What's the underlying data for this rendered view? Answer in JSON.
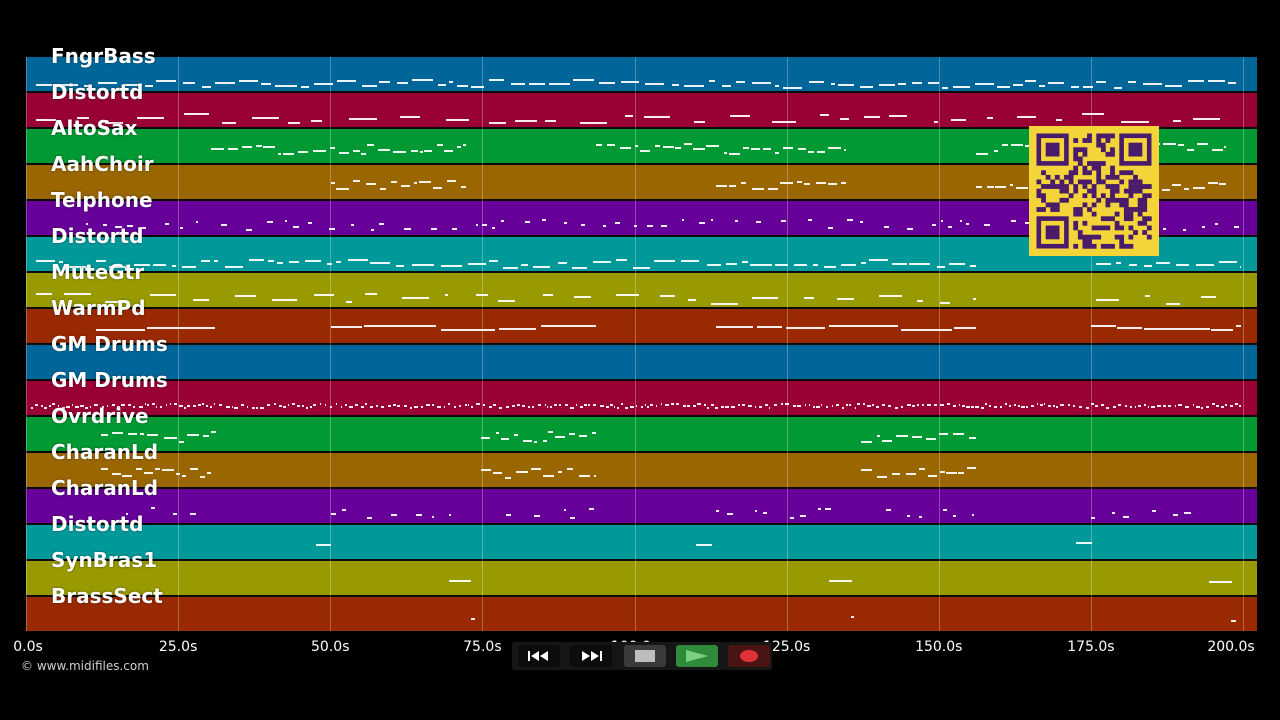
{
  "tracks": [
    {
      "name": "FngrBass",
      "color": "#006699"
    },
    {
      "name": "Distortd",
      "color": "#990033"
    },
    {
      "name": "AltoSax",
      "color": "#009933"
    },
    {
      "name": "AahChoir",
      "color": "#996600"
    },
    {
      "name": "Telphone",
      "color": "#660099"
    },
    {
      "name": "Distortd",
      "color": "#009999"
    },
    {
      "name": "MuteGtr",
      "color": "#999900"
    },
    {
      "name": "WarmPd",
      "color": "#992900"
    },
    {
      "name": "GM Drums",
      "color": "#006699"
    },
    {
      "name": "GM Drums",
      "color": "#990033"
    },
    {
      "name": "Ovrdrive",
      "color": "#009933"
    },
    {
      "name": "CharanLd",
      "color": "#996600"
    },
    {
      "name": "CharanLd",
      "color": "#660099"
    },
    {
      "name": "Distortd",
      "color": "#009999"
    },
    {
      "name": "SynBras1",
      "color": "#999900"
    },
    {
      "name": "BrassSect",
      "color": "#992900"
    }
  ],
  "timeline": {
    "ticks": [
      "0.0s",
      "25.0s",
      "50.0s",
      "75.0s",
      "100.0s",
      "125.0s",
      "150.0s",
      "175.0s",
      "200.0s"
    ]
  },
  "copyright": "© www.midifiles.com",
  "transport": {
    "rewind_icon": "rewind-icon",
    "fast_forward_icon": "fast-forward-icon",
    "stop_icon": "stop-icon",
    "play_icon": "play-icon",
    "record_icon": "record-icon"
  },
  "qr_icon": "qr-code-icon",
  "colors": {
    "background": "#000000",
    "play_button": "#2e8b3a",
    "record_dot": "#e0303a",
    "qr_background": "#f3d539",
    "qr_foreground": "#4a1a6b"
  }
}
